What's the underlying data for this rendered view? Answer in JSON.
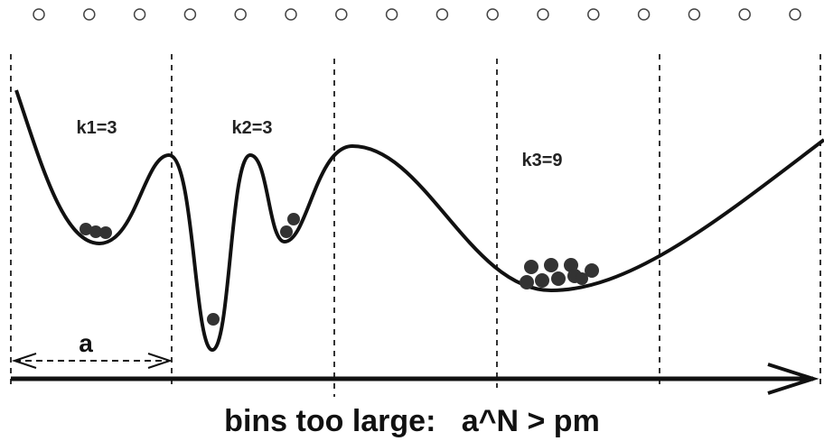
{
  "bins": [
    {
      "label": "k1=3"
    },
    {
      "label": "k2=3"
    },
    {
      "label": "k3=9"
    }
  ],
  "width_label": "a",
  "caption": "bins too large:   a^N > pm"
}
